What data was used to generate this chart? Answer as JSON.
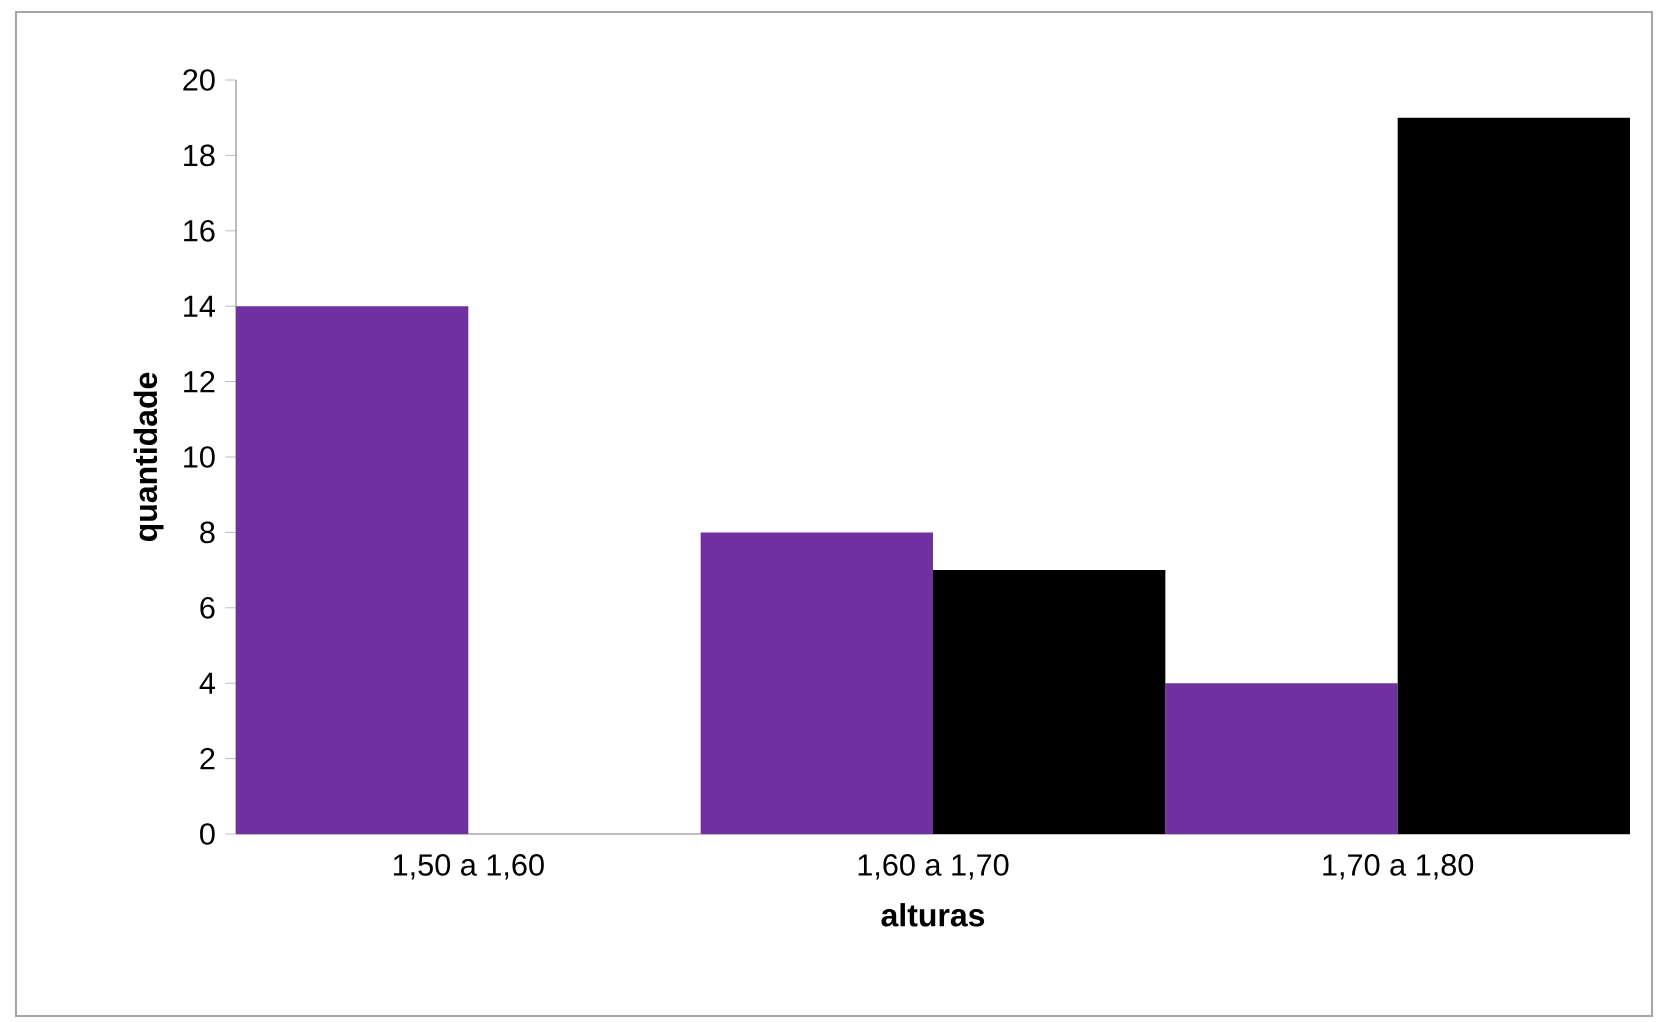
{
  "chart_data": {
    "type": "bar",
    "xlabel": "alturas",
    "ylabel": "quantidade",
    "categories": [
      "1,50 a 1,60",
      "1,60 a 1,70",
      "1,70 a 1,80"
    ],
    "series": [
      {
        "color": "#7030a0",
        "values": [
          14,
          8,
          4
        ]
      },
      {
        "color": "#000000",
        "values": [
          0,
          7,
          19
        ]
      }
    ],
    "ylim": [
      0,
      20
    ],
    "yticks": [
      0,
      2,
      4,
      6,
      8,
      10,
      12,
      14,
      16,
      18,
      20
    ]
  }
}
